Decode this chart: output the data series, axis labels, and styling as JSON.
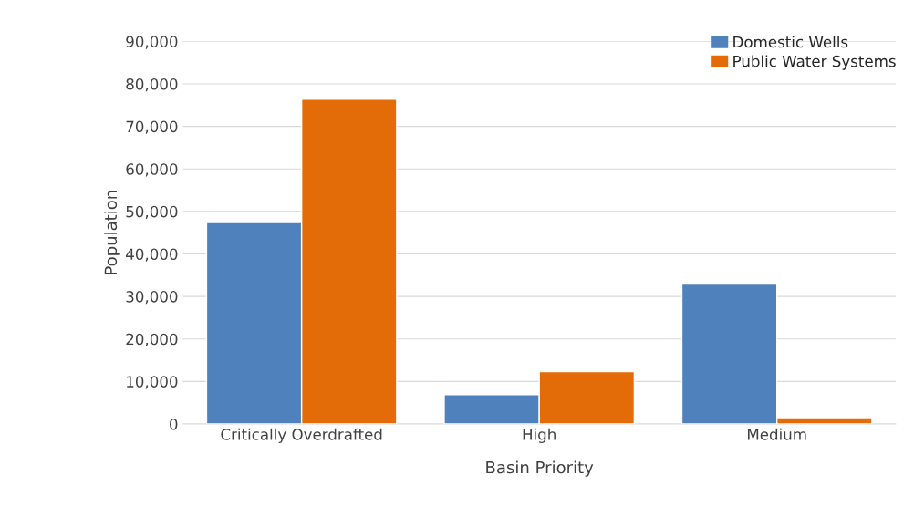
{
  "chart_data": {
    "type": "bar",
    "xlabel": "Basin Priority",
    "ylabel": "Population",
    "categories": [
      "Critically Overdrafted",
      "High",
      "Medium"
    ],
    "series": [
      {
        "name": "Domestic Wells",
        "color": "#4f81bd",
        "values": [
          47400,
          6900,
          32900
        ]
      },
      {
        "name": "Public Water Systems",
        "color": "#e36c09",
        "values": [
          76400,
          12300,
          1500
        ]
      }
    ],
    "ylim": [
      0,
      90000
    ],
    "yticks": [
      {
        "value": 0,
        "label": "0"
      },
      {
        "value": 10000,
        "label": "10,000"
      },
      {
        "value": 20000,
        "label": "20,000"
      },
      {
        "value": 30000,
        "label": "30,000"
      },
      {
        "value": 40000,
        "label": "40,000"
      },
      {
        "value": 50000,
        "label": "50,000"
      },
      {
        "value": 60000,
        "label": "60,000"
      },
      {
        "value": 70000,
        "label": "70,000"
      },
      {
        "value": 80000,
        "label": "80,000"
      },
      {
        "value": 90000,
        "label": "90,000"
      }
    ],
    "grid": "y",
    "legend": "top right"
  }
}
